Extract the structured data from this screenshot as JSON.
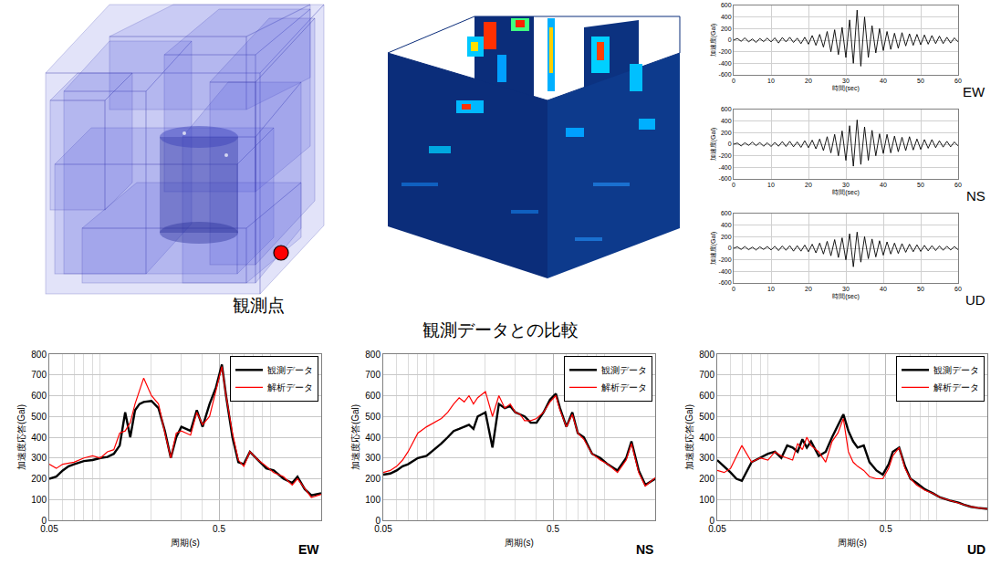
{
  "title": "観測データとの比較",
  "model": {
    "label": "観測点"
  },
  "chart_data": [
    {
      "type": "line",
      "title": "EW",
      "xlabel": "時間(sec)",
      "ylabel": "加速度(Gal)",
      "x": [
        0,
        1,
        2,
        3,
        4,
        5,
        6,
        7,
        8,
        9,
        10,
        11,
        12,
        13,
        14,
        15,
        16,
        17,
        18,
        19,
        20,
        21,
        22,
        23,
        24,
        25,
        26,
        27,
        28,
        29,
        30,
        31,
        32,
        33,
        34,
        35,
        36,
        37,
        38,
        39,
        40,
        41,
        42,
        43,
        44,
        45,
        46,
        47,
        48,
        49,
        50,
        51,
        52,
        53,
        54,
        55,
        56,
        57,
        58,
        59,
        60
      ],
      "values": [
        0,
        30,
        -20,
        40,
        -30,
        20,
        -40,
        30,
        -25,
        35,
        -30,
        40,
        -50,
        45,
        -30,
        50,
        -40,
        35,
        -60,
        50,
        -70,
        80,
        -90,
        100,
        -120,
        150,
        -200,
        180,
        -250,
        220,
        -300,
        350,
        -400,
        520,
        -450,
        400,
        -300,
        250,
        -220,
        200,
        -180,
        150,
        -160,
        120,
        -140,
        130,
        -100,
        110,
        -90,
        100,
        -80,
        90,
        -70,
        80,
        -60,
        70,
        -60,
        50,
        -50,
        40,
        -30
      ],
      "color": "#000000",
      "xlim": [
        0,
        60
      ],
      "xticks": [
        0,
        10,
        20,
        30,
        40,
        50,
        60
      ],
      "ylim": [
        -600,
        600
      ],
      "yticks": [
        -600,
        -400,
        -200,
        0,
        200,
        400,
        600
      ],
      "grid": true
    },
    {
      "type": "line",
      "title": "NS",
      "xlabel": "時間(sec)",
      "ylabel": "加速度(Gal)",
      "x": [
        0,
        1,
        2,
        3,
        4,
        5,
        6,
        7,
        8,
        9,
        10,
        11,
        12,
        13,
        14,
        15,
        16,
        17,
        18,
        19,
        20,
        21,
        22,
        23,
        24,
        25,
        26,
        27,
        28,
        29,
        30,
        31,
        32,
        33,
        34,
        35,
        36,
        37,
        38,
        39,
        40,
        41,
        42,
        43,
        44,
        45,
        46,
        47,
        48,
        49,
        50,
        51,
        52,
        53,
        54,
        55,
        56,
        57,
        58,
        59,
        60
      ],
      "values": [
        0,
        20,
        -30,
        25,
        -20,
        35,
        -25,
        30,
        -35,
        25,
        -40,
        30,
        -35,
        45,
        -40,
        50,
        -45,
        40,
        -55,
        60,
        -60,
        70,
        -80,
        90,
        -110,
        130,
        -150,
        170,
        -200,
        230,
        -280,
        320,
        -380,
        420,
        -350,
        300,
        -280,
        240,
        -200,
        180,
        -160,
        170,
        -150,
        140,
        -130,
        120,
        -110,
        130,
        -100,
        90,
        -90,
        80,
        -70,
        80,
        -60,
        60,
        -50,
        50,
        -45,
        40,
        -30
      ],
      "color": "#000000",
      "xlim": [
        0,
        60
      ],
      "xticks": [
        0,
        10,
        20,
        30,
        40,
        50,
        60
      ],
      "ylim": [
        -600,
        600
      ],
      "yticks": [
        -600,
        -400,
        -200,
        0,
        200,
        400,
        600
      ],
      "grid": true
    },
    {
      "type": "line",
      "title": "UD",
      "xlabel": "時間(sec)",
      "ylabel": "加速度(Gal)",
      "x": [
        0,
        1,
        2,
        3,
        4,
        5,
        6,
        7,
        8,
        9,
        10,
        11,
        12,
        13,
        14,
        15,
        16,
        17,
        18,
        19,
        20,
        21,
        22,
        23,
        24,
        25,
        26,
        27,
        28,
        29,
        30,
        31,
        32,
        33,
        34,
        35,
        36,
        37,
        38,
        39,
        40,
        41,
        42,
        43,
        44,
        45,
        46,
        47,
        48,
        49,
        50,
        51,
        52,
        53,
        54,
        55,
        56,
        57,
        58,
        59,
        60
      ],
      "values": [
        0,
        25,
        -20,
        30,
        -25,
        20,
        -30,
        25,
        -20,
        30,
        -30,
        35,
        -40,
        40,
        -35,
        45,
        -50,
        45,
        -50,
        55,
        -60,
        70,
        -80,
        90,
        -100,
        120,
        -130,
        150,
        -160,
        180,
        -200,
        250,
        -320,
        280,
        -240,
        200,
        -180,
        160,
        -150,
        130,
        -120,
        110,
        -100,
        90,
        -90,
        80,
        -70,
        70,
        -60,
        60,
        -55,
        50,
        -45,
        45,
        -40,
        40,
        -35,
        35,
        -30,
        30,
        -25
      ],
      "color": "#000000",
      "xlim": [
        0,
        60
      ],
      "xticks": [
        0,
        10,
        20,
        30,
        40,
        50,
        60
      ],
      "ylim": [
        -600,
        600
      ],
      "yticks": [
        -600,
        -400,
        -200,
        0,
        200,
        400,
        600
      ],
      "grid": true
    },
    {
      "type": "line",
      "title": "EW",
      "xlabel": "周期(s)",
      "ylabel": "加速度応答(Gal)",
      "log": "x",
      "grid": true,
      "legend": "upper right",
      "x": [
        0.05,
        0.055,
        0.06,
        0.065,
        0.07,
        0.08,
        0.09,
        0.1,
        0.11,
        0.12,
        0.13,
        0.14,
        0.15,
        0.16,
        0.17,
        0.18,
        0.2,
        0.22,
        0.24,
        0.26,
        0.28,
        0.3,
        0.32,
        0.34,
        0.37,
        0.4,
        0.44,
        0.48,
        0.52,
        0.55,
        0.6,
        0.65,
        0.7,
        0.76,
        0.85,
        0.95,
        1.05,
        1.2,
        1.35,
        1.45,
        1.6,
        1.75,
        2.0
      ],
      "xlim": [
        0.05,
        2.0
      ],
      "xticks": [
        0.05,
        0.5
      ],
      "ylim": [
        0,
        800
      ],
      "yticks": [
        0,
        100,
        200,
        300,
        400,
        500,
        600,
        700,
        800
      ],
      "series": [
        {
          "name": "観測データ",
          "color": "#000000",
          "values": [
            200,
            210,
            240,
            260,
            270,
            285,
            290,
            300,
            305,
            320,
            360,
            520,
            400,
            530,
            560,
            570,
            575,
            540,
            430,
            300,
            400,
            450,
            440,
            430,
            530,
            450,
            560,
            640,
            750,
            600,
            400,
            280,
            270,
            330,
            290,
            250,
            240,
            200,
            180,
            210,
            150,
            120,
            130
          ]
        },
        {
          "name": "解析データ",
          "color": "#ff0000",
          "values": [
            270,
            250,
            270,
            275,
            280,
            300,
            310,
            300,
            330,
            340,
            420,
            430,
            470,
            560,
            620,
            685,
            600,
            560,
            420,
            300,
            420,
            430,
            420,
            410,
            520,
            460,
            500,
            620,
            740,
            600,
            420,
            290,
            260,
            330,
            290,
            260,
            230,
            210,
            170,
            200,
            150,
            110,
            125
          ]
        }
      ]
    },
    {
      "type": "line",
      "title": "NS",
      "xlabel": "周期(s)",
      "ylabel": "加速度応答(Gal)",
      "log": "x",
      "grid": true,
      "legend": "upper right",
      "x": [
        0.05,
        0.055,
        0.06,
        0.065,
        0.07,
        0.08,
        0.09,
        0.1,
        0.11,
        0.12,
        0.13,
        0.14,
        0.15,
        0.16,
        0.17,
        0.18,
        0.2,
        0.22,
        0.24,
        0.26,
        0.28,
        0.3,
        0.32,
        0.34,
        0.37,
        0.4,
        0.44,
        0.48,
        0.52,
        0.55,
        0.6,
        0.65,
        0.7,
        0.76,
        0.85,
        0.95,
        1.05,
        1.2,
        1.35,
        1.45,
        1.6,
        1.75,
        2.0
      ],
      "xlim": [
        0.05,
        2.0
      ],
      "xticks": [
        0.05,
        0.5
      ],
      "ylim": [
        0,
        800
      ],
      "yticks": [
        0,
        100,
        200,
        300,
        400,
        500,
        600,
        700,
        800
      ],
      "series": [
        {
          "name": "観測データ",
          "color": "#000000",
          "values": [
            220,
            225,
            240,
            260,
            270,
            300,
            310,
            340,
            370,
            400,
            430,
            440,
            450,
            460,
            440,
            500,
            520,
            350,
            560,
            540,
            550,
            520,
            510,
            500,
            470,
            470,
            520,
            580,
            610,
            540,
            450,
            520,
            420,
            400,
            320,
            300,
            270,
            240,
            300,
            380,
            240,
            170,
            200
          ]
        },
        {
          "name": "解析データ",
          "color": "#ff0000",
          "values": [
            230,
            240,
            260,
            290,
            330,
            420,
            450,
            470,
            490,
            520,
            560,
            590,
            570,
            600,
            560,
            590,
            620,
            500,
            600,
            540,
            560,
            520,
            510,
            480,
            480,
            490,
            520,
            570,
            600,
            530,
            450,
            510,
            420,
            390,
            320,
            290,
            270,
            230,
            290,
            370,
            230,
            165,
            205
          ]
        }
      ]
    },
    {
      "type": "line",
      "title": "UD",
      "xlabel": "周期(s)",
      "ylabel": "加速度応答(Gal)",
      "log": "x",
      "grid": true,
      "legend": "upper right",
      "x": [
        0.05,
        0.055,
        0.06,
        0.065,
        0.07,
        0.08,
        0.09,
        0.1,
        0.11,
        0.12,
        0.13,
        0.14,
        0.15,
        0.16,
        0.17,
        0.18,
        0.2,
        0.22,
        0.24,
        0.26,
        0.28,
        0.3,
        0.32,
        0.34,
        0.37,
        0.4,
        0.44,
        0.48,
        0.52,
        0.55,
        0.6,
        0.65,
        0.7,
        0.76,
        0.85,
        0.95,
        1.05,
        1.2,
        1.35,
        1.45,
        1.6,
        1.75,
        2.0
      ],
      "xlim": [
        0.05,
        2.0
      ],
      "xticks": [
        0.05,
        0.5
      ],
      "ylim": [
        0,
        800
      ],
      "yticks": [
        0,
        100,
        200,
        300,
        400,
        500,
        600,
        700,
        800
      ],
      "series": [
        {
          "name": "観測データ",
          "color": "#000000",
          "values": [
            290,
            260,
            230,
            200,
            190,
            280,
            300,
            320,
            330,
            300,
            360,
            350,
            330,
            390,
            350,
            380,
            310,
            330,
            400,
            460,
            510,
            430,
            380,
            350,
            360,
            280,
            240,
            220,
            270,
            330,
            350,
            260,
            200,
            180,
            150,
            130,
            110,
            95,
            85,
            75,
            65,
            60,
            55
          ]
        },
        {
          "name": "解析データ",
          "color": "#ff0000",
          "values": [
            240,
            230,
            250,
            310,
            360,
            280,
            300,
            290,
            330,
            310,
            300,
            290,
            370,
            340,
            400,
            360,
            330,
            280,
            380,
            420,
            490,
            330,
            280,
            260,
            240,
            210,
            200,
            200,
            250,
            310,
            350,
            250,
            200,
            170,
            145,
            130,
            110,
            95,
            85,
            75,
            65,
            60,
            55
          ]
        }
      ]
    }
  ]
}
